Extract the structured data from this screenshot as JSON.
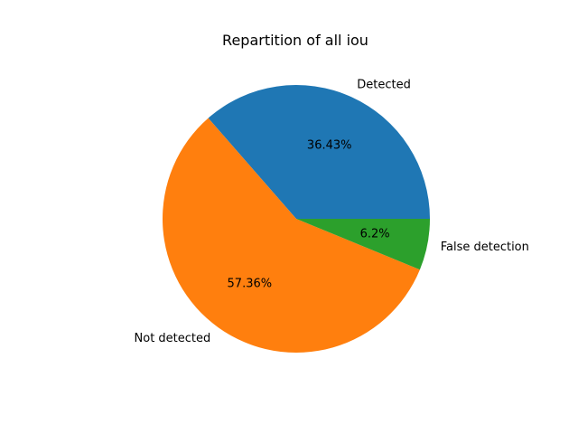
{
  "chart_data": {
    "type": "pie",
    "title": "Repartition of all iou",
    "slices": [
      {
        "label": "Detected",
        "value": 36.43,
        "pct_label": "36.43%",
        "color": "#1f77b4"
      },
      {
        "label": "Not detected",
        "value": 57.36,
        "pct_label": "57.36%",
        "color": "#ff7f0e"
      },
      {
        "label": "False detection",
        "value": 6.2,
        "pct_label": "6.2%",
        "color": "#2ca02c"
      }
    ],
    "start_angle_deg": 0,
    "direction": "counterclockwise"
  }
}
